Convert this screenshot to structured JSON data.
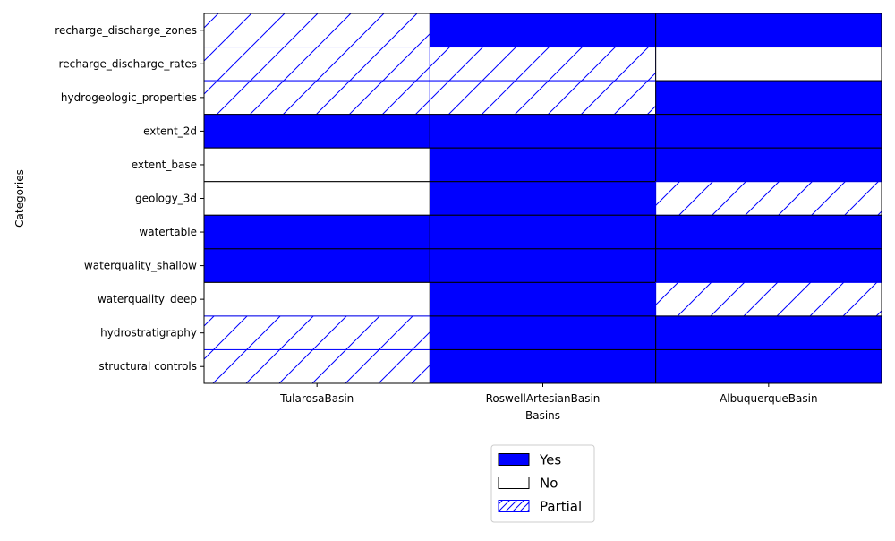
{
  "chart_data": {
    "type": "heatmap",
    "xlabel": "Basins",
    "ylabel": "Categories",
    "x": [
      "TularosaBasin",
      "RoswellArtesianBasin",
      "AlbuquerqueBasin"
    ],
    "y": [
      "recharge_discharge_zones",
      "recharge_discharge_rates",
      "hydrogeologic_properties",
      "extent_2d",
      "extent_base",
      "geology_3d",
      "watertable",
      "waterquality_shallow",
      "waterquality_deep",
      "hydrostratigraphy",
      "structural controls"
    ],
    "values": [
      [
        "Partial",
        "Yes",
        "Yes"
      ],
      [
        "Partial",
        "Partial",
        "No"
      ],
      [
        "Partial",
        "Partial",
        "Yes"
      ],
      [
        "Yes",
        "Yes",
        "Yes"
      ],
      [
        "No",
        "Yes",
        "Yes"
      ],
      [
        "No",
        "Yes",
        "Partial"
      ],
      [
        "Yes",
        "Yes",
        "Yes"
      ],
      [
        "Yes",
        "Yes",
        "Yes"
      ],
      [
        "No",
        "Yes",
        "Partial"
      ],
      [
        "Partial",
        "Yes",
        "Yes"
      ],
      [
        "Partial",
        "Yes",
        "Yes"
      ]
    ],
    "legend": {
      "placement": "bottom-center",
      "entries": [
        "Yes",
        "No",
        "Partial"
      ]
    },
    "colors": {
      "Yes": "#0000ff",
      "No": "#ffffff",
      "Partial_hatch": "#0000ff",
      "edge": "#000000"
    },
    "grid": false
  }
}
